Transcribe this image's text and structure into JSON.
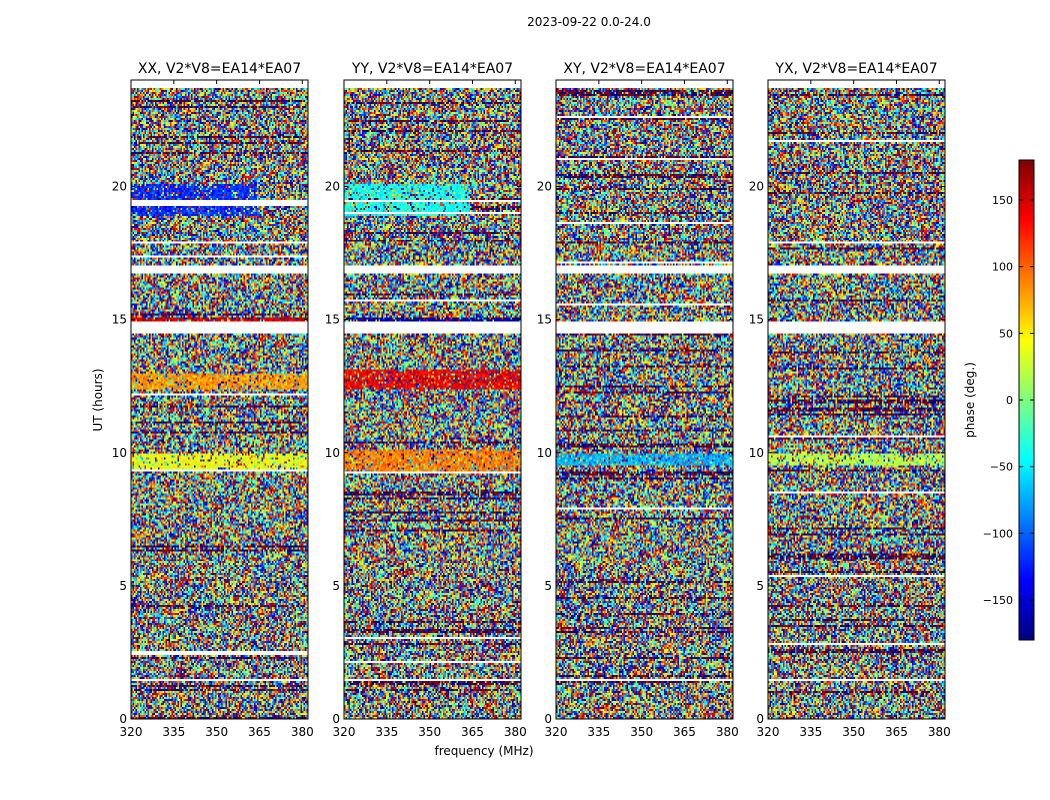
{
  "figure": {
    "suptitle": "2023-09-22 0.0-24.0"
  },
  "chart_data": [
    {
      "type": "heatmap",
      "title": "XX, V2*V8=EA14*EA07",
      "xlabel": "frequency (MHz)",
      "ylabel": "UT (hours)",
      "xlim": [
        320,
        382
      ],
      "ylim": [
        0,
        24
      ],
      "xticks": [
        320,
        335,
        350,
        365,
        380
      ],
      "yticks": [
        0,
        5,
        10,
        15,
        20
      ],
      "flagged_bands_hours": [
        [
          14.5,
          14.9
        ],
        [
          16.7,
          17.0
        ],
        [
          23.7,
          24.0
        ],
        [
          19.4,
          19.5
        ],
        [
          9.3,
          9.35
        ],
        [
          1.4,
          1.5
        ]
      ],
      "coherent_bands": [
        {
          "t0": 18.9,
          "t1": 20.1,
          "f1": 364,
          "phase": -120
        },
        {
          "t0": 9.3,
          "t1": 10.0,
          "phase": 40
        },
        {
          "t0": 12.4,
          "t1": 13.0,
          "phase": 80
        },
        {
          "t0": 14.9,
          "t1": 15.1,
          "phase": 150
        }
      ]
    },
    {
      "type": "heatmap",
      "title": "YY, V2*V8=EA14*EA07",
      "xlabel": "frequency (MHz)",
      "ylabel": "UT (hours)",
      "xlim": [
        320,
        382
      ],
      "ylim": [
        0,
        24
      ],
      "xticks": [
        320,
        335,
        350,
        365,
        380
      ],
      "yticks": [
        0,
        5,
        10,
        15,
        20
      ],
      "flagged_bands_hours": [
        [
          14.5,
          14.9
        ],
        [
          16.7,
          17.0
        ],
        [
          23.7,
          24.0
        ],
        [
          19.4,
          19.5
        ],
        [
          1.4,
          1.5
        ]
      ],
      "coherent_bands": [
        {
          "t0": 18.9,
          "t1": 20.1,
          "f1": 364,
          "phase": -40
        },
        {
          "t0": 9.3,
          "t1": 10.1,
          "phase": 90
        },
        {
          "t0": 12.4,
          "t1": 13.1,
          "phase": 140
        },
        {
          "t0": 14.9,
          "t1": 15.1,
          "phase": -170
        }
      ]
    },
    {
      "type": "heatmap",
      "title": "XY, V2*V8=EA14*EA07",
      "xlabel": "frequency (MHz)",
      "ylabel": "UT (hours)",
      "xlim": [
        320,
        382
      ],
      "ylim": [
        0,
        24
      ],
      "xticks": [
        320,
        335,
        350,
        365,
        380
      ],
      "yticks": [
        0,
        5,
        10,
        15,
        20
      ],
      "flagged_bands_hours": [
        [
          14.5,
          14.9
        ],
        [
          16.7,
          17.0
        ],
        [
          23.7,
          24.0
        ],
        [
          1.4,
          1.5
        ]
      ],
      "coherent_bands": [
        {
          "t0": 9.5,
          "t1": 10.0,
          "phase": -70
        }
      ]
    },
    {
      "type": "heatmap",
      "title": "YX, V2*V8=EA14*EA07",
      "xlabel": "frequency (MHz)",
      "ylabel": "UT (hours)",
      "xlim": [
        320,
        382
      ],
      "ylim": [
        0,
        24
      ],
      "xticks": [
        320,
        335,
        350,
        365,
        380
      ],
      "yticks": [
        0,
        5,
        10,
        15,
        20
      ],
      "flagged_bands_hours": [
        [
          14.5,
          14.9
        ],
        [
          16.7,
          17.0
        ],
        [
          23.7,
          24.0
        ],
        [
          1.4,
          1.5
        ]
      ],
      "coherent_bands": [
        {
          "t0": 9.5,
          "t1": 10.0,
          "phase": 20
        }
      ]
    }
  ],
  "colorbar": {
    "label": "phase (deg.)",
    "range": [
      -180,
      180
    ],
    "ticks": [
      150,
      100,
      50,
      0,
      -50,
      -100,
      -150
    ],
    "tick_labels": [
      "150",
      "100",
      "50",
      "0",
      "−50",
      "−100",
      "−150"
    ],
    "colormap": "jet",
    "colors": [
      "#00007f",
      "#0000ff",
      "#007fff",
      "#00ffff",
      "#7fff7f",
      "#ffff00",
      "#ff7f00",
      "#ff0000",
      "#7f0000"
    ]
  }
}
